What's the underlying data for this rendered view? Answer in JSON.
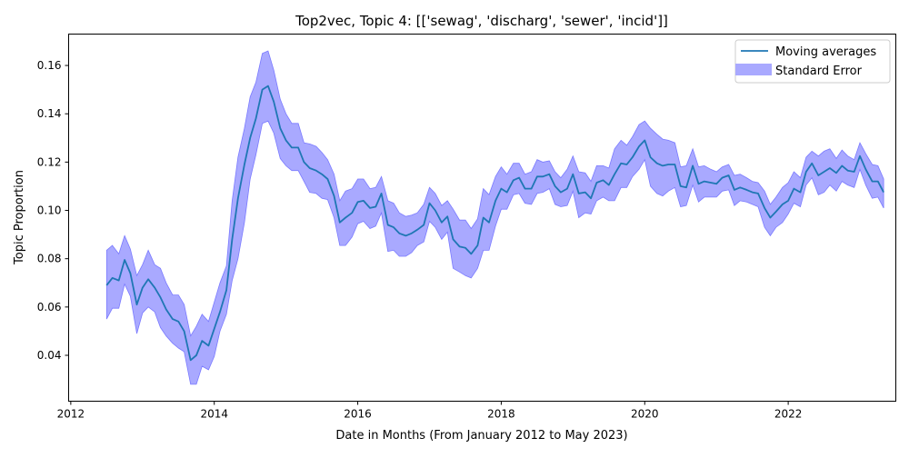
{
  "chart_data": {
    "type": "line",
    "title": "Top2vec, Topic 4: [['sewag', 'discharg', 'sewer', 'incid']]",
    "xlabel": "Date in Months (From January 2012 to May 2023)",
    "ylabel": "Topic Proportion",
    "xlim": [
      2011.97,
      2023.5
    ],
    "ylim": [
      0.021,
      0.173
    ],
    "x_ticks": [
      2012,
      2014,
      2016,
      2018,
      2020,
      2022
    ],
    "x_tick_labels": [
      "2012",
      "2014",
      "2016",
      "2018",
      "2020",
      "2022"
    ],
    "y_ticks": [
      0.04,
      0.06,
      0.08,
      0.1,
      0.12,
      0.14,
      0.16
    ],
    "y_tick_labels": [
      "0.04",
      "0.06",
      "0.08",
      "0.10",
      "0.12",
      "0.14",
      "0.16"
    ],
    "grid": false,
    "legend_position": "top-right",
    "colors": {
      "line": "#1f77b4",
      "band": "#a9a9ff",
      "band_edge": "#7a7aff"
    },
    "series": [
      {
        "name": "Moving averages",
        "x": [
          2012.5,
          2012.58,
          2012.67,
          2012.75,
          2012.83,
          2012.92,
          2013.0,
          2013.08,
          2013.17,
          2013.25,
          2013.33,
          2013.42,
          2013.5,
          2013.58,
          2013.67,
          2013.75,
          2013.83,
          2013.92,
          2014.0,
          2014.08,
          2014.17,
          2014.25,
          2014.33,
          2014.42,
          2014.5,
          2014.58,
          2014.67,
          2014.75,
          2014.83,
          2014.92,
          2015.0,
          2015.08,
          2015.17,
          2015.25,
          2015.33,
          2015.42,
          2015.5,
          2015.58,
          2015.67,
          2015.75,
          2015.83,
          2015.92,
          2016.0,
          2016.08,
          2016.17,
          2016.25,
          2016.33,
          2016.42,
          2016.5,
          2016.58,
          2016.67,
          2016.75,
          2016.83,
          2016.92,
          2017.0,
          2017.08,
          2017.17,
          2017.25,
          2017.33,
          2017.42,
          2017.5,
          2017.58,
          2017.67,
          2017.75,
          2017.83,
          2017.92,
          2018.0,
          2018.08,
          2018.17,
          2018.25,
          2018.33,
          2018.42,
          2018.5,
          2018.58,
          2018.67,
          2018.75,
          2018.83,
          2018.92,
          2019.0,
          2019.08,
          2019.17,
          2019.25,
          2019.33,
          2019.42,
          2019.5,
          2019.58,
          2019.67,
          2019.75,
          2019.83,
          2019.92,
          2020.0,
          2020.08,
          2020.17,
          2020.25,
          2020.33,
          2020.42,
          2020.5,
          2020.58,
          2020.67,
          2020.75,
          2020.83,
          2020.92,
          2021.0,
          2021.08,
          2021.17,
          2021.25,
          2021.33,
          2021.42,
          2021.5,
          2021.58,
          2021.67,
          2021.75,
          2021.83,
          2021.92,
          2022.0,
          2022.08,
          2022.17,
          2022.25,
          2022.33,
          2022.42,
          2022.5,
          2022.58,
          2022.67,
          2022.75,
          2022.83,
          2022.92,
          2023.0,
          2023.08,
          2023.17,
          2023.25,
          2023.33
        ],
        "values": [
          0.069,
          0.072,
          0.071,
          0.0795,
          0.074,
          0.061,
          0.068,
          0.0715,
          0.068,
          0.064,
          0.059,
          0.055,
          0.054,
          0.05,
          0.038,
          0.04,
          0.046,
          0.044,
          0.051,
          0.058,
          0.067,
          0.088,
          0.105,
          0.119,
          0.13,
          0.138,
          0.15,
          0.1515,
          0.145,
          0.134,
          0.129,
          0.126,
          0.126,
          0.12,
          0.1175,
          0.1165,
          0.115,
          0.113,
          0.106,
          0.095,
          0.097,
          0.099,
          0.1035,
          0.104,
          0.101,
          0.1015,
          0.107,
          0.094,
          0.093,
          0.0905,
          0.0895,
          0.0905,
          0.092,
          0.094,
          0.103,
          0.1,
          0.095,
          0.0975,
          0.088,
          0.085,
          0.0845,
          0.082,
          0.0855,
          0.097,
          0.095,
          0.104,
          0.109,
          0.1075,
          0.1125,
          0.1135,
          0.109,
          0.109,
          0.114,
          0.114,
          0.115,
          0.11,
          0.1075,
          0.109,
          0.115,
          0.107,
          0.1075,
          0.105,
          0.1115,
          0.1125,
          0.1105,
          0.115,
          0.1195,
          0.119,
          0.122,
          0.1265,
          0.129,
          0.122,
          0.1195,
          0.1185,
          0.119,
          0.119,
          0.11,
          0.1095,
          0.1185,
          0.111,
          0.112,
          0.1115,
          0.111,
          0.1135,
          0.1145,
          0.1085,
          0.1095,
          0.1085,
          0.1075,
          0.107,
          0.101,
          0.097,
          0.0995,
          0.1025,
          0.104,
          0.109,
          0.1075,
          0.116,
          0.1195,
          0.1145,
          0.116,
          0.1175,
          0.1155,
          0.1185,
          0.1165,
          0.116,
          0.1225,
          0.117,
          0.112,
          0.112,
          0.1075
        ]
      }
    ],
    "band": {
      "name": "Standard Error",
      "upper": [
        0.0835,
        0.0855,
        0.082,
        0.0895,
        0.084,
        0.073,
        0.0775,
        0.0835,
        0.0775,
        0.076,
        0.07,
        0.065,
        0.065,
        0.061,
        0.048,
        0.052,
        0.057,
        0.054,
        0.062,
        0.07,
        0.077,
        0.104,
        0.122,
        0.134,
        0.147,
        0.153,
        0.165,
        0.166,
        0.158,
        0.146,
        0.14,
        0.136,
        0.136,
        0.128,
        0.1275,
        0.1265,
        0.124,
        0.121,
        0.115,
        0.104,
        0.108,
        0.109,
        0.113,
        0.113,
        0.109,
        0.1095,
        0.114,
        0.104,
        0.103,
        0.099,
        0.0975,
        0.098,
        0.099,
        0.1025,
        0.1095,
        0.107,
        0.102,
        0.104,
        0.1005,
        0.096,
        0.096,
        0.0925,
        0.0965,
        0.109,
        0.1065,
        0.114,
        0.118,
        0.115,
        0.1195,
        0.1195,
        0.115,
        0.116,
        0.121,
        0.12,
        0.1205,
        0.116,
        0.1135,
        0.117,
        0.1225,
        0.116,
        0.1155,
        0.112,
        0.1185,
        0.1185,
        0.1175,
        0.1255,
        0.129,
        0.127,
        0.1305,
        0.1355,
        0.137,
        0.134,
        0.1315,
        0.1295,
        0.129,
        0.128,
        0.118,
        0.1185,
        0.1255,
        0.118,
        0.1185,
        0.117,
        0.116,
        0.118,
        0.119,
        0.1145,
        0.115,
        0.1135,
        0.112,
        0.1115,
        0.108,
        0.1025,
        0.1055,
        0.1095,
        0.1115,
        0.116,
        0.1135,
        0.122,
        0.1245,
        0.1225,
        0.1245,
        0.1255,
        0.1215,
        0.125,
        0.1225,
        0.121,
        0.128,
        0.1235,
        0.119,
        0.1185,
        0.113
      ],
      "lower": [
        0.055,
        0.0595,
        0.0595,
        0.0695,
        0.0645,
        0.049,
        0.0575,
        0.06,
        0.058,
        0.0515,
        0.048,
        0.045,
        0.043,
        0.0415,
        0.028,
        0.028,
        0.0355,
        0.034,
        0.0395,
        0.05,
        0.057,
        0.071,
        0.08,
        0.095,
        0.113,
        0.123,
        0.136,
        0.137,
        0.132,
        0.1215,
        0.1185,
        0.1165,
        0.1165,
        0.112,
        0.1075,
        0.107,
        0.105,
        0.1045,
        0.097,
        0.0855,
        0.0855,
        0.089,
        0.0945,
        0.0955,
        0.0925,
        0.0935,
        0.099,
        0.083,
        0.0835,
        0.081,
        0.081,
        0.0825,
        0.0855,
        0.087,
        0.0955,
        0.093,
        0.088,
        0.091,
        0.076,
        0.0745,
        0.073,
        0.072,
        0.076,
        0.0835,
        0.0835,
        0.0935,
        0.1005,
        0.1005,
        0.1065,
        0.107,
        0.103,
        0.1025,
        0.107,
        0.1075,
        0.109,
        0.1025,
        0.1015,
        0.102,
        0.108,
        0.097,
        0.099,
        0.0985,
        0.104,
        0.1055,
        0.104,
        0.104,
        0.1095,
        0.1095,
        0.114,
        0.117,
        0.121,
        0.11,
        0.107,
        0.106,
        0.108,
        0.1095,
        0.1015,
        0.102,
        0.1105,
        0.1035,
        0.1055,
        0.1055,
        0.1055,
        0.108,
        0.1085,
        0.102,
        0.104,
        0.1035,
        0.1025,
        0.1015,
        0.093,
        0.0895,
        0.093,
        0.095,
        0.0985,
        0.103,
        0.1015,
        0.1105,
        0.1135,
        0.1065,
        0.1075,
        0.1105,
        0.108,
        0.112,
        0.1105,
        0.1095,
        0.117,
        0.1105,
        0.105,
        0.1055,
        0.101
      ]
    }
  }
}
